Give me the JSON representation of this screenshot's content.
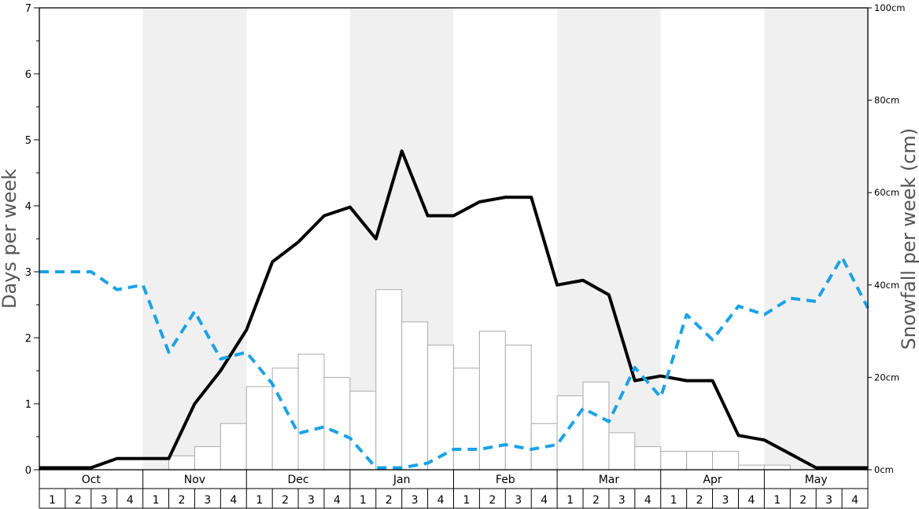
{
  "chart_data": {
    "type": "bar+line",
    "ylabel_left": "Days per week",
    "ylabel_right": "Snowfall per week (cm)",
    "left_axis": {
      "ylim": [
        0,
        7
      ],
      "ticks": [
        "0",
        "1",
        "2",
        "3",
        "4",
        "5",
        "6",
        "7"
      ]
    },
    "right_axis": {
      "ylim": [
        0,
        100
      ],
      "ticks": [
        "0cm",
        "20cm",
        "40cm",
        "60cm",
        "80cm",
        "100cm"
      ],
      "tick_values": [
        0,
        20,
        40,
        60,
        80,
        100
      ]
    },
    "months": [
      "Oct",
      "Nov",
      "Dec",
      "Jan",
      "Feb",
      "Mar",
      "Apr",
      "May"
    ],
    "week_labels": [
      "1",
      "2",
      "3",
      "4"
    ],
    "shaded_months": [
      "Nov",
      "Jan",
      "Mar",
      "May"
    ],
    "bars": {
      "axis": "right",
      "color": "#ffffff",
      "border": "#aaaaaa",
      "values_cm": [
        0,
        0,
        0,
        0,
        0,
        3,
        5,
        10,
        18,
        22,
        25,
        20,
        17,
        39,
        32,
        27,
        22,
        30,
        27,
        10,
        16,
        19,
        8,
        5,
        4,
        4,
        4,
        1,
        1,
        0,
        0,
        0
      ]
    },
    "series": [
      {
        "axis": "left",
        "color": "#000000",
        "style": "solid",
        "values": [
          0.03,
          0.03,
          0.03,
          0.17,
          0.17,
          0.17,
          1.0,
          1.5,
          2.12,
          3.15,
          3.45,
          3.85,
          3.98,
          3.5,
          4.83,
          3.85,
          3.85,
          4.06,
          4.13,
          4.13,
          2.8,
          2.87,
          2.65,
          1.35,
          1.42,
          1.35,
          1.35,
          0.52,
          0.45,
          0.24,
          0.03,
          0.03,
          0.03
        ]
      },
      {
        "axis": "left",
        "color": "#1aa2e6",
        "style": "dashed",
        "values": [
          3.0,
          3.0,
          3.0,
          2.73,
          2.8,
          1.78,
          2.4,
          1.68,
          1.78,
          1.3,
          0.55,
          0.65,
          0.48,
          0.03,
          0.03,
          0.1,
          0.31,
          0.31,
          0.38,
          0.31,
          0.38,
          0.93,
          0.73,
          1.55,
          1.1,
          2.35,
          1.97,
          2.48,
          2.35,
          2.6,
          2.55,
          3.22,
          2.45
        ]
      }
    ]
  }
}
